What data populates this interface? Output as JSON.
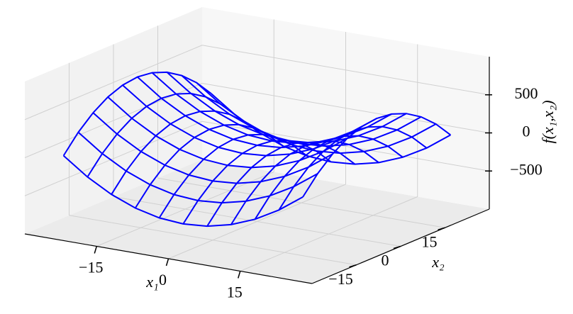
{
  "chart_data": {
    "type": "wireframe",
    "color": "#0000ff",
    "xlabel": "x₁",
    "ylabel": "x₂",
    "zlabel": "f(x₁,x₂)",
    "x": [
      -25,
      -20,
      -15,
      -10,
      -5,
      0,
      5,
      10,
      15,
      20,
      25
    ],
    "y": [
      -25,
      -20,
      -15,
      -10,
      -5,
      0,
      5,
      10,
      15,
      20,
      25
    ],
    "z": [
      [
        0,
        225,
        400,
        525,
        600,
        625,
        600,
        525,
        400,
        225,
        0
      ],
      [
        -225,
        0,
        175,
        300,
        375,
        400,
        375,
        300,
        175,
        0,
        -225
      ],
      [
        -400,
        -175,
        0,
        125,
        200,
        225,
        200,
        125,
        0,
        -175,
        -400
      ],
      [
        -525,
        -300,
        -125,
        0,
        75,
        100,
        75,
        0,
        -125,
        -300,
        -525
      ],
      [
        -600,
        -375,
        -200,
        -75,
        0,
        25,
        0,
        -75,
        -200,
        -375,
        -600
      ],
      [
        -625,
        -400,
        -225,
        -100,
        -25,
        0,
        -25,
        -100,
        -225,
        -400,
        -625
      ],
      [
        -600,
        -375,
        -200,
        -75,
        0,
        25,
        0,
        -75,
        -200,
        -375,
        -600
      ],
      [
        -525,
        -300,
        -125,
        0,
        75,
        100,
        75,
        0,
        -125,
        -300,
        -525
      ],
      [
        -400,
        -175,
        0,
        125,
        200,
        225,
        200,
        125,
        0,
        -175,
        -400
      ],
      [
        -225,
        0,
        175,
        300,
        375,
        400,
        375,
        300,
        175,
        0,
        -225
      ],
      [
        0,
        225,
        400,
        525,
        600,
        625,
        600,
        525,
        400,
        225,
        0
      ]
    ],
    "xlim": [
      -30,
      30
    ],
    "ylim": [
      -30,
      30
    ],
    "zlim": [
      -1000,
      1000
    ],
    "xticks": [
      {
        "value": -15,
        "label": "−15"
      },
      0,
      15
    ],
    "yticks": [
      {
        "value": -15,
        "label": "−15"
      },
      0,
      15
    ],
    "zticks": [
      {
        "value": -500,
        "label": "−500"
      },
      0,
      500
    ],
    "grid": true
  }
}
